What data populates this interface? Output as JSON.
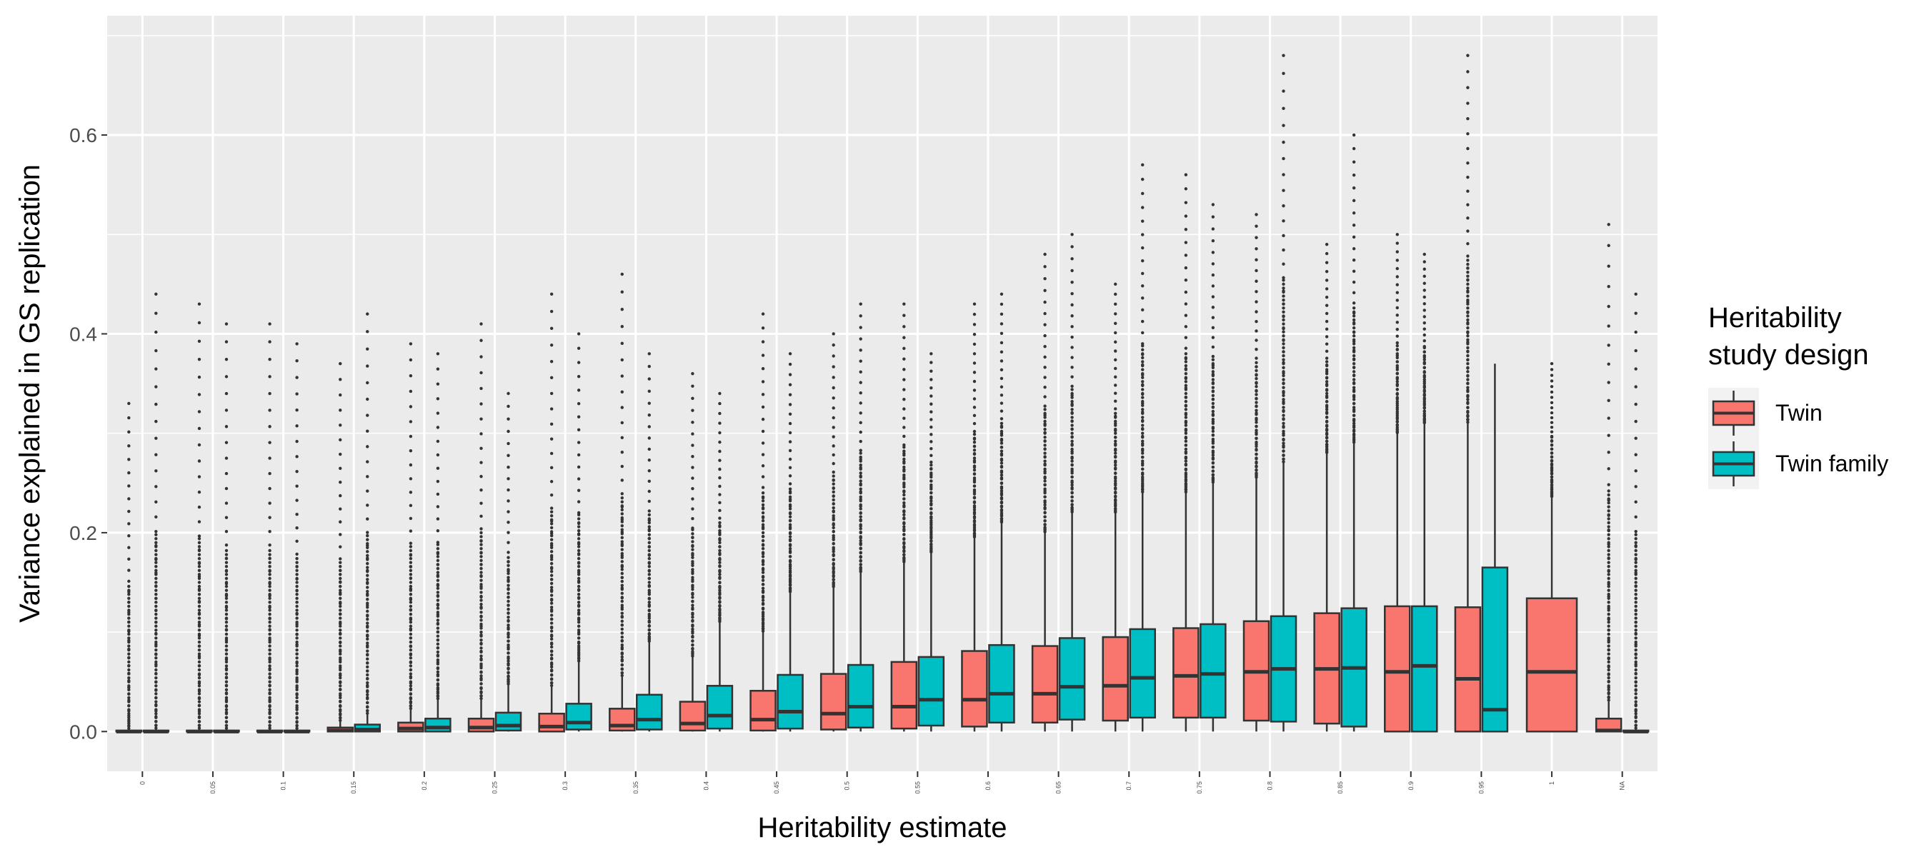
{
  "chart_data": {
    "type": "boxplot",
    "xlabel": "Heritability estimate",
    "ylabel": "Variance explained in GS replication",
    "ylim": [
      -0.04,
      0.72
    ],
    "yticks": [
      0.0,
      0.2,
      0.4,
      0.6
    ],
    "ytick_labels": [
      "0.0",
      "0.2",
      "0.4",
      "0.6"
    ],
    "grid": true,
    "legend": {
      "title_lines": [
        "Heritability",
        "study design"
      ],
      "position": "right",
      "entries": [
        {
          "name": "Twin",
          "color": "#F8766D"
        },
        {
          "name": "Twin family",
          "color": "#00BFC4"
        }
      ]
    },
    "categories": [
      "0",
      "0.05",
      "0.1",
      "0.15",
      "0.2",
      "0.25",
      "0.3",
      "0.35",
      "0.4",
      "0.45",
      "0.5",
      "0.55",
      "0.6",
      "0.65",
      "0.7",
      "0.75",
      "0.8",
      "0.85",
      "0.9",
      "0.95",
      "1",
      "NA"
    ],
    "series": [
      {
        "name": "Twin",
        "color": "#F8766D",
        "boxes": [
          {
            "q1": 0,
            "median": 0,
            "q3": 0.001,
            "lo": 0,
            "hi": 0.002,
            "omax": 0.33
          },
          {
            "q1": 0,
            "median": 0,
            "q3": 0.001,
            "lo": 0,
            "hi": 0.002,
            "omax": 0.43
          },
          {
            "q1": 0,
            "median": 0,
            "q3": 0.001,
            "lo": 0,
            "hi": 0.002,
            "omax": 0.41
          },
          {
            "q1": 0,
            "median": 0.001,
            "q3": 0.004,
            "lo": 0,
            "hi": 0.01,
            "omax": 0.37
          },
          {
            "q1": 0,
            "median": 0.003,
            "q3": 0.009,
            "lo": 0,
            "hi": 0.022,
            "omax": 0.39
          },
          {
            "q1": 0,
            "median": 0.004,
            "q3": 0.013,
            "lo": 0,
            "hi": 0.032,
            "omax": 0.41
          },
          {
            "q1": 0,
            "median": 0.005,
            "q3": 0.018,
            "lo": 0,
            "hi": 0.045,
            "omax": 0.44
          },
          {
            "q1": 0.001,
            "median": 0.006,
            "q3": 0.023,
            "lo": 0,
            "hi": 0.055,
            "omax": 0.46
          },
          {
            "q1": 0.001,
            "median": 0.008,
            "q3": 0.03,
            "lo": 0,
            "hi": 0.075,
            "omax": 0.36
          },
          {
            "q1": 0.001,
            "median": 0.012,
            "q3": 0.041,
            "lo": 0,
            "hi": 0.1,
            "omax": 0.42
          },
          {
            "q1": 0.002,
            "median": 0.018,
            "q3": 0.058,
            "lo": 0,
            "hi": 0.145,
            "omax": 0.4
          },
          {
            "q1": 0.003,
            "median": 0.025,
            "q3": 0.07,
            "lo": 0,
            "hi": 0.17,
            "omax": 0.43
          },
          {
            "q1": 0.005,
            "median": 0.032,
            "q3": 0.081,
            "lo": 0,
            "hi": 0.195,
            "omax": 0.43
          },
          {
            "q1": 0.009,
            "median": 0.038,
            "q3": 0.086,
            "lo": 0,
            "hi": 0.2,
            "omax": 0.48
          },
          {
            "q1": 0.011,
            "median": 0.046,
            "q3": 0.095,
            "lo": 0,
            "hi": 0.22,
            "omax": 0.45
          },
          {
            "q1": 0.014,
            "median": 0.056,
            "q3": 0.104,
            "lo": 0,
            "hi": 0.24,
            "omax": 0.56
          },
          {
            "q1": 0.011,
            "median": 0.06,
            "q3": 0.111,
            "lo": 0,
            "hi": 0.255,
            "omax": 0.52
          },
          {
            "q1": 0.008,
            "median": 0.063,
            "q3": 0.119,
            "lo": 0,
            "hi": 0.28,
            "omax": 0.49
          },
          {
            "q1": 0,
            "median": 0.06,
            "q3": 0.126,
            "lo": 0,
            "hi": 0.3,
            "omax": 0.5
          },
          {
            "q1": 0,
            "median": 0.053,
            "q3": 0.125,
            "lo": 0,
            "hi": 0.31,
            "omax": 0.68
          },
          {
            "q1": 0,
            "median": 0.06,
            "q3": 0.134,
            "lo": 0,
            "hi": 0.236,
            "omax": 0.37
          },
          {
            "q1": 0,
            "median": 0.001,
            "q3": 0.013,
            "lo": 0,
            "hi": 0.03,
            "omax": 0.51
          }
        ]
      },
      {
        "name": "Twin family",
        "color": "#00BFC4",
        "boxes": [
          {
            "q1": 0,
            "median": 0,
            "q3": 0.001,
            "lo": 0,
            "hi": 0.002,
            "omax": 0.44
          },
          {
            "q1": 0,
            "median": 0,
            "q3": 0.001,
            "lo": 0,
            "hi": 0.002,
            "omax": 0.41
          },
          {
            "q1": 0,
            "median": 0,
            "q3": 0.001,
            "lo": 0,
            "hi": 0.002,
            "omax": 0.39
          },
          {
            "q1": 0,
            "median": 0.002,
            "q3": 0.007,
            "lo": 0,
            "hi": 0.017,
            "omax": 0.42
          },
          {
            "q1": 0,
            "median": 0.004,
            "q3": 0.013,
            "lo": 0,
            "hi": 0.032,
            "omax": 0.38
          },
          {
            "q1": 0.001,
            "median": 0.006,
            "q3": 0.019,
            "lo": 0,
            "hi": 0.047,
            "omax": 0.34
          },
          {
            "q1": 0.002,
            "median": 0.009,
            "q3": 0.028,
            "lo": 0,
            "hi": 0.07,
            "omax": 0.4
          },
          {
            "q1": 0.002,
            "median": 0.012,
            "q3": 0.037,
            "lo": 0,
            "hi": 0.09,
            "omax": 0.38
          },
          {
            "q1": 0.003,
            "median": 0.016,
            "q3": 0.046,
            "lo": 0,
            "hi": 0.11,
            "omax": 0.34
          },
          {
            "q1": 0.003,
            "median": 0.02,
            "q3": 0.057,
            "lo": 0,
            "hi": 0.14,
            "omax": 0.38
          },
          {
            "q1": 0.004,
            "median": 0.025,
            "q3": 0.067,
            "lo": 0,
            "hi": 0.16,
            "omax": 0.43
          },
          {
            "q1": 0.006,
            "median": 0.032,
            "q3": 0.075,
            "lo": 0,
            "hi": 0.18,
            "omax": 0.38
          },
          {
            "q1": 0.009,
            "median": 0.038,
            "q3": 0.087,
            "lo": 0,
            "hi": 0.21,
            "omax": 0.44
          },
          {
            "q1": 0.012,
            "median": 0.045,
            "q3": 0.094,
            "lo": 0,
            "hi": 0.22,
            "omax": 0.5
          },
          {
            "q1": 0.014,
            "median": 0.054,
            "q3": 0.103,
            "lo": 0,
            "hi": 0.24,
            "omax": 0.57
          },
          {
            "q1": 0.014,
            "median": 0.058,
            "q3": 0.108,
            "lo": 0,
            "hi": 0.25,
            "omax": 0.53
          },
          {
            "q1": 0.01,
            "median": 0.063,
            "q3": 0.116,
            "lo": 0,
            "hi": 0.27,
            "omax": 0.68
          },
          {
            "q1": 0.005,
            "median": 0.064,
            "q3": 0.124,
            "lo": 0,
            "hi": 0.29,
            "omax": 0.6
          },
          {
            "q1": 0,
            "median": 0.066,
            "q3": 0.126,
            "lo": 0,
            "hi": 0.31,
            "omax": 0.48
          },
          {
            "q1": 0,
            "median": 0.022,
            "q3": 0.165,
            "lo": 0,
            "hi": 0.37,
            "omax": 0.37
          },
          null,
          {
            "q1": 0,
            "median": 0,
            "q3": 0.001,
            "lo": 0,
            "hi": 0.002,
            "omax": 0.44
          }
        ]
      }
    ]
  }
}
